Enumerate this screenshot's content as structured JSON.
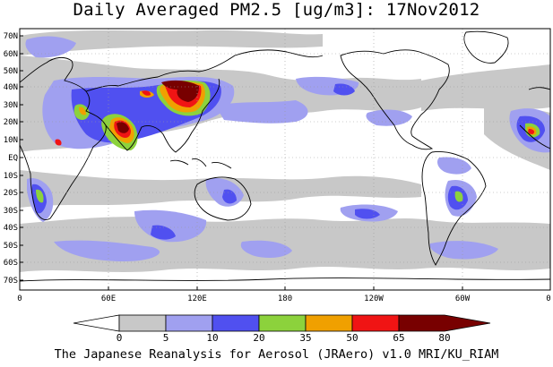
{
  "title": "Daily Averaged PM2.5 [ug/m3]: 17Nov2012",
  "footer": "The Japanese Reanalysis for Aerosol (JRAero) v1.0 MRI/KU_RIAM",
  "lat_labels": [
    "70N",
    "60N",
    "50N",
    "40N",
    "30N",
    "20N",
    "10N",
    "EQ",
    "10S",
    "20S",
    "30S",
    "40S",
    "50S",
    "60S",
    "70S"
  ],
  "lon_labels": [
    "0",
    "60E",
    "120E",
    "180",
    "120W",
    "60W",
    "0"
  ],
  "colorbar": {
    "ticks": [
      "0",
      "5",
      "10",
      "20",
      "35",
      "50",
      "65",
      "80"
    ],
    "colors": [
      "#ffffff",
      "#c8c8c8",
      "#a0a0f0",
      "#5050f0",
      "#8cd23c",
      "#f0a000",
      "#f01414",
      "#780000"
    ]
  }
}
